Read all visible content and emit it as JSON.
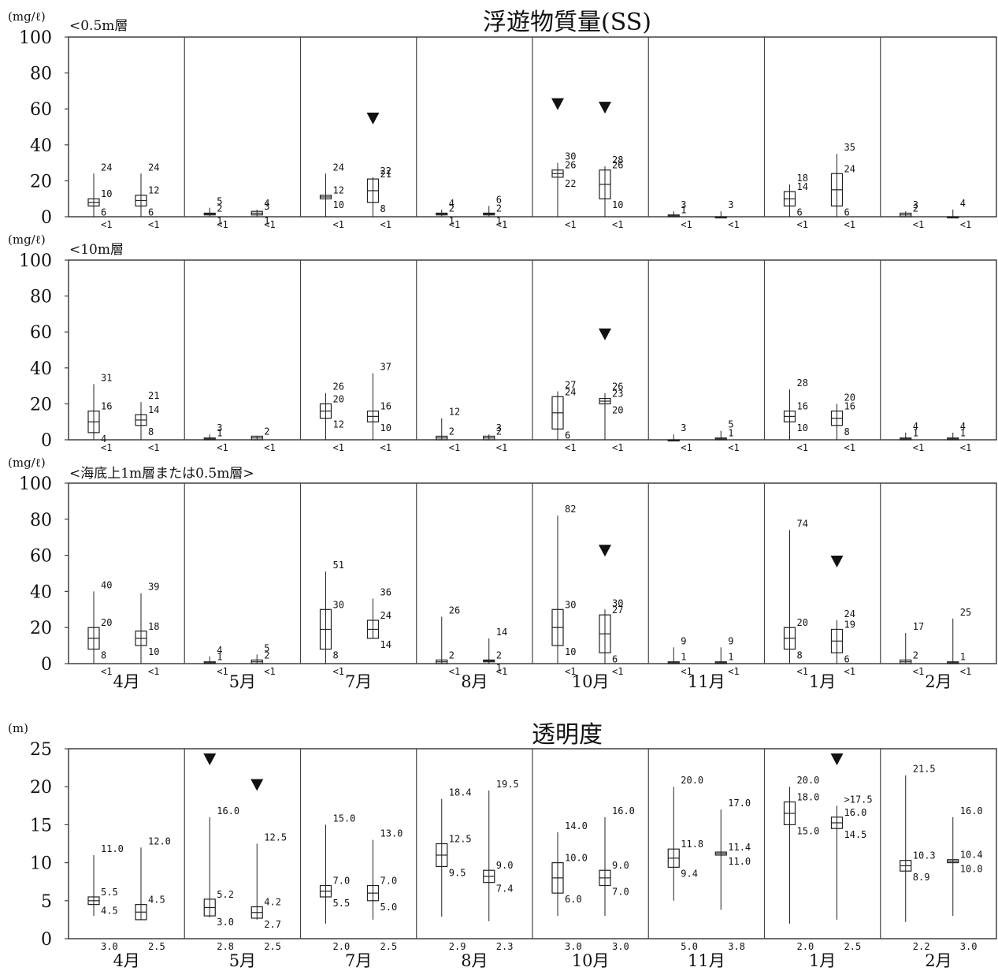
{
  "colors": {
    "axis": "#333333",
    "box": "#222222",
    "marker": "#111111"
  },
  "chart_data": [
    {
      "type": "boxplot",
      "title": "浮遊物質量(SS)",
      "subtitle": "<0.5m層",
      "unit": "(mg/ℓ)",
      "ylim": [
        0,
        100
      ],
      "yticks": [
        "0",
        "20",
        "40",
        "60",
        "80",
        "100"
      ],
      "categories": [
        "4月",
        "5月",
        "7月",
        "8月",
        "10月",
        "11月",
        "1月",
        "2月"
      ],
      "xlabels_shown": false,
      "stations": [
        {
          "max": "24",
          "q3": "10",
          "q1": "6",
          "min": "<1",
          "vals": [
            24,
            10,
            6,
            0
          ],
          "marker": false
        },
        {
          "max": "24",
          "q3": "12",
          "q1": "6",
          "min": "<1",
          "vals": [
            24,
            12,
            6,
            0
          ],
          "marker": false
        },
        {
          "max": "5",
          "q3": "2",
          "q1": "1",
          "min": "<1",
          "vals": [
            5,
            2,
            1,
            0
          ],
          "marker": false
        },
        {
          "max": "4",
          "q3": "3",
          "q1": "1",
          "min": "<1",
          "vals": [
            4,
            3,
            1,
            0
          ],
          "marker": false
        },
        {
          "max": "24",
          "q3": "12",
          "q1": "10",
          "min": "<1",
          "vals": [
            24,
            12,
            10,
            0
          ],
          "marker": false
        },
        {
          "max": "22",
          "q3": "21",
          "q1": "8",
          "min": "<1",
          "vals": [
            22,
            21,
            8,
            0
          ],
          "marker": true
        },
        {
          "max": "4",
          "q3": "2",
          "q1": "1",
          "min": "<1",
          "vals": [
            4,
            2,
            1,
            0
          ],
          "marker": false
        },
        {
          "max": "6",
          "q3": "2",
          "q1": "1",
          "min": "<1",
          "vals": [
            6,
            2,
            1,
            0
          ],
          "marker": false
        },
        {
          "max": "30",
          "q3": "26",
          "q1": "22",
          "min": "<1",
          "vals": [
            30,
            26,
            22,
            0
          ],
          "marker": true
        },
        {
          "max": "28",
          "q3": "26",
          "q1": "10",
          "min": "<1",
          "vals": [
            28,
            26,
            10,
            0
          ],
          "marker": true
        },
        {
          "max": "3",
          "q3": "1",
          "q1": "",
          "min": "<1",
          "vals": [
            3,
            1,
            0,
            0
          ],
          "marker": false
        },
        {
          "max": "3",
          "q3": "",
          "q1": "",
          "min": "<1",
          "vals": [
            3,
            0,
            0,
            0
          ],
          "marker": false
        },
        {
          "max": "18",
          "q3": "14",
          "q1": "6",
          "min": "<1",
          "vals": [
            18,
            14,
            6,
            0
          ],
          "marker": false
        },
        {
          "max": "35",
          "q3": "24",
          "q1": "6",
          "min": "<1",
          "vals": [
            35,
            24,
            6,
            0
          ],
          "marker": false
        },
        {
          "max": "3",
          "q3": "2",
          "q1": "",
          "min": "<1",
          "vals": [
            3,
            2,
            0,
            0
          ],
          "marker": false
        },
        {
          "max": "4",
          "q3": "",
          "q1": "",
          "min": "<1",
          "vals": [
            4,
            0,
            0,
            0
          ],
          "marker": false
        }
      ]
    },
    {
      "type": "boxplot",
      "title": "",
      "subtitle": "<10m層",
      "unit": "(mg/ℓ)",
      "ylim": [
        0,
        100
      ],
      "yticks": [
        "0",
        "20",
        "40",
        "60",
        "80",
        "100"
      ],
      "categories": [
        "4月",
        "5月",
        "7月",
        "8月",
        "10月",
        "11月",
        "1月",
        "2月"
      ],
      "xlabels_shown": false,
      "stations": [
        {
          "max": "31",
          "q3": "16",
          "q1": "4",
          "min": "<1",
          "vals": [
            31,
            16,
            4,
            0
          ],
          "marker": false
        },
        {
          "max": "21",
          "q3": "14",
          "q1": "8",
          "min": "<1",
          "vals": [
            21,
            14,
            8,
            0
          ],
          "marker": false
        },
        {
          "max": "3",
          "q3": "1",
          "q1": "",
          "min": "<1",
          "vals": [
            3,
            1,
            0,
            0
          ],
          "marker": false
        },
        {
          "max": "",
          "q3": "2",
          "q1": "",
          "min": "<1",
          "vals": [
            2,
            2,
            0,
            0
          ],
          "marker": false
        },
        {
          "max": "26",
          "q3": "20",
          "q1": "12",
          "min": "<1",
          "vals": [
            26,
            20,
            12,
            0
          ],
          "marker": false
        },
        {
          "max": "37",
          "q3": "16",
          "q1": "10",
          "min": "<1",
          "vals": [
            37,
            16,
            10,
            0
          ],
          "marker": false
        },
        {
          "max": "12",
          "q3": "2",
          "q1": "",
          "min": "<1",
          "vals": [
            12,
            2,
            0,
            0
          ],
          "marker": false
        },
        {
          "max": "3",
          "q3": "2",
          "q1": "",
          "min": "<1",
          "vals": [
            3,
            2,
            0,
            0
          ],
          "marker": false
        },
        {
          "max": "27",
          "q3": "24",
          "q1": "6",
          "min": "<1",
          "vals": [
            27,
            24,
            6,
            0
          ],
          "marker": false
        },
        {
          "max": "26",
          "q3": "23",
          "q1": "20",
          "min": "<1",
          "vals": [
            26,
            23,
            20,
            0
          ],
          "marker": true
        },
        {
          "max": "3",
          "q3": "",
          "q1": "",
          "min": "<1",
          "vals": [
            3,
            0,
            0,
            0
          ],
          "marker": false
        },
        {
          "max": "5",
          "q3": "1",
          "q1": "",
          "min": "<1",
          "vals": [
            5,
            1,
            0,
            0
          ],
          "marker": false
        },
        {
          "max": "28",
          "q3": "16",
          "q1": "10",
          "min": "<1",
          "vals": [
            28,
            16,
            10,
            0
          ],
          "marker": false
        },
        {
          "max": "20",
          "q3": "16",
          "q1": "8",
          "min": "<1",
          "vals": [
            20,
            16,
            8,
            0
          ],
          "marker": false
        },
        {
          "max": "4",
          "q3": "1",
          "q1": "",
          "min": "<1",
          "vals": [
            4,
            1,
            0,
            0
          ],
          "marker": false
        },
        {
          "max": "4",
          "q3": "1",
          "q1": "",
          "min": "<1",
          "vals": [
            4,
            1,
            0,
            0
          ],
          "marker": false
        }
      ]
    },
    {
      "type": "boxplot",
      "title": "",
      "subtitle": "<海底上1m層または0.5m層>",
      "unit": "(mg/ℓ)",
      "ylim": [
        0,
        100
      ],
      "yticks": [
        "0",
        "20",
        "40",
        "60",
        "80",
        "100"
      ],
      "categories": [
        "4月",
        "5月",
        "7月",
        "8月",
        "10月",
        "11月",
        "1月",
        "2月"
      ],
      "xlabels_shown": true,
      "stations": [
        {
          "max": "40",
          "q3": "20",
          "q1": "8",
          "min": "<1",
          "vals": [
            40,
            20,
            8,
            0
          ],
          "marker": false
        },
        {
          "max": "39",
          "q3": "18",
          "q1": "10",
          "min": "<1",
          "vals": [
            39,
            18,
            10,
            0
          ],
          "marker": false
        },
        {
          "max": "4",
          "q3": "1",
          "q1": "",
          "min": "<1",
          "vals": [
            4,
            1,
            0,
            0
          ],
          "marker": false
        },
        {
          "max": "5",
          "q3": "2",
          "q1": "",
          "min": "<1",
          "vals": [
            5,
            2,
            0,
            0
          ],
          "marker": false
        },
        {
          "max": "51",
          "q3": "30",
          "q1": "8",
          "min": "<1",
          "vals": [
            51,
            30,
            8,
            0
          ],
          "marker": false
        },
        {
          "max": "36",
          "q3": "24",
          "q1": "14",
          "min": "",
          "vals": [
            36,
            24,
            14,
            14
          ],
          "marker": false
        },
        {
          "max": "26",
          "q3": "2",
          "q1": "",
          "min": "<1",
          "vals": [
            26,
            2,
            0,
            0
          ],
          "marker": false
        },
        {
          "max": "14",
          "q3": "2",
          "q1": "1",
          "min": "<1",
          "vals": [
            14,
            2,
            1,
            0
          ],
          "marker": false
        },
        {
          "max": "82",
          "q3": "30",
          "q1": "10",
          "min": "<1",
          "vals": [
            82,
            30,
            10,
            0
          ],
          "marker": false
        },
        {
          "max": "30",
          "q3": "27",
          "q1": "6",
          "min": "<1",
          "vals": [
            30,
            27,
            6,
            0
          ],
          "marker": true
        },
        {
          "max": "9",
          "q3": "1",
          "q1": "",
          "min": "<1",
          "vals": [
            9,
            1,
            0,
            0
          ],
          "marker": false
        },
        {
          "max": "9",
          "q3": "1",
          "q1": "",
          "min": "<1",
          "vals": [
            9,
            1,
            0,
            0
          ],
          "marker": false
        },
        {
          "max": "74",
          "q3": "20",
          "q1": "8",
          "min": "<1",
          "vals": [
            74,
            20,
            8,
            0
          ],
          "marker": false
        },
        {
          "max": "24",
          "q3": "19",
          "q1": "6",
          "min": "<1",
          "vals": [
            24,
            19,
            6,
            0
          ],
          "marker": true
        },
        {
          "max": "17",
          "q3": "2",
          "q1": "",
          "min": "<1",
          "vals": [
            17,
            2,
            0,
            0
          ],
          "marker": false
        },
        {
          "max": "25",
          "q3": "1",
          "q1": "",
          "min": "<1",
          "vals": [
            25,
            1,
            0,
            0
          ],
          "marker": false
        }
      ]
    },
    {
      "type": "boxplot",
      "title": "透明度",
      "subtitle": "",
      "unit": "(m)",
      "ylim": [
        0,
        25
      ],
      "yticks": [
        "0",
        "5",
        "10",
        "15",
        "20",
        "25"
      ],
      "categories": [
        "4月",
        "5月",
        "7月",
        "8月",
        "10月",
        "11月",
        "1月",
        "2月"
      ],
      "xlabels_shown": true,
      "stations": [
        {
          "max": "11.0",
          "q3": "5.5",
          "q1": "4.5",
          "min": "3.0",
          "vals": [
            11.0,
            5.5,
            4.5,
            3.0
          ],
          "marker": false
        },
        {
          "max": "12.0",
          "q3": "4.5",
          "q1": "",
          "min": "2.5",
          "vals": [
            12.0,
            4.5,
            2.5,
            2.5
          ],
          "marker": false
        },
        {
          "max": "16.0",
          "q3": "5.2",
          "q1": "3.0",
          "min": "2.8",
          "vals": [
            16.0,
            5.2,
            3.0,
            2.8
          ],
          "marker": true
        },
        {
          "max": "12.5",
          "q3": "4.2",
          "q1": "2.7",
          "min": "2.5",
          "vals": [
            12.5,
            4.2,
            2.7,
            2.5
          ],
          "marker": true
        },
        {
          "max": "15.0",
          "q3": "7.0",
          "q1": "5.5",
          "min": "2.0",
          "vals": [
            15.0,
            7.0,
            5.5,
            2.0
          ],
          "marker": false
        },
        {
          "max": "13.0",
          "q3": "7.0",
          "q1": "5.0",
          "min": "2.5",
          "vals": [
            13.0,
            7.0,
            5.0,
            2.5
          ],
          "marker": false
        },
        {
          "max": "18.4",
          "q3": "12.5",
          "q1": "9.5",
          "min": "2.9",
          "vals": [
            18.4,
            12.5,
            9.5,
            2.9
          ],
          "marker": false
        },
        {
          "max": "19.5",
          "q3": "9.0",
          "q1": "7.4",
          "min": "2.3",
          "vals": [
            19.5,
            9.0,
            7.4,
            2.3
          ],
          "marker": false
        },
        {
          "max": "14.0",
          "q3": "10.0",
          "q1": "6.0",
          "min": "3.0",
          "vals": [
            14.0,
            10.0,
            6.0,
            3.0
          ],
          "marker": false
        },
        {
          "max": "16.0",
          "q3": "9.0",
          "q1": "7.0",
          "min": "3.0",
          "vals": [
            16.0,
            9.0,
            7.0,
            3.0
          ],
          "marker": false
        },
        {
          "max": "20.0",
          "q3": "11.8",
          "q1": "9.4",
          "min": "5.0",
          "vals": [
            20.0,
            11.8,
            9.4,
            5.0
          ],
          "marker": false
        },
        {
          "max": "17.0",
          "q3": "11.4",
          "q1": "11.0",
          "min": "3.8",
          "vals": [
            17.0,
            11.4,
            11.0,
            3.8
          ],
          "marker": false
        },
        {
          "max": "20.0",
          "q3": "18.0",
          "q1": "15.0",
          "min": "2.0",
          "vals": [
            20.0,
            18.0,
            15.0,
            2.0
          ],
          "marker": false
        },
        {
          "max": ">17.5",
          "q3": "16.0",
          "q1": "14.5",
          "min": "2.5",
          "vals": [
            17.5,
            16.0,
            14.5,
            2.5
          ],
          "marker": true
        },
        {
          "max": "21.5",
          "q3": "10.3",
          "q1": "8.9",
          "min": "2.2",
          "vals": [
            21.5,
            10.3,
            8.9,
            2.2
          ],
          "marker": false
        },
        {
          "max": "16.0",
          "q3": "10.4",
          "q1": "10.0",
          "min": "3.0",
          "vals": [
            16.0,
            10.4,
            10.0,
            3.0
          ],
          "marker": false
        }
      ]
    }
  ]
}
